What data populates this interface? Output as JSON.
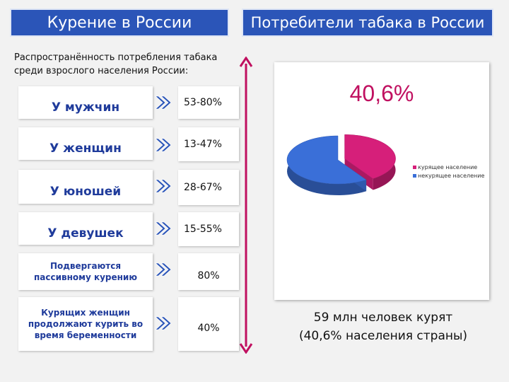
{
  "header": {
    "left_title": "Курение в России",
    "right_title": "Потребители табака в России"
  },
  "intro": "Распространённость потребления табака среди взрослого населения России:",
  "rows": [
    {
      "label": "У мужчин",
      "value": "53-80%"
    },
    {
      "label": "У женщин",
      "value": "13-47%"
    },
    {
      "label": "У юношей",
      "value": "28-67%"
    },
    {
      "label": "У девушек",
      "value": "15-55%"
    },
    {
      "label": "Подвергаются пассивному курению",
      "value": "80%"
    },
    {
      "label": "Курящих женщин продолжают курить во время беременности",
      "value": "40%"
    }
  ],
  "colors": {
    "title_bg": "#2b55b8",
    "label_text": "#1f3b9b",
    "arrow": "#2b55b8",
    "accent_line": "#c01060",
    "smoking": "#d61f7a",
    "non_smoking": "#3a6fd8"
  },
  "icons": {
    "arrow": "double-chevron-right-icon",
    "divider": "double-arrow-vertical-icon"
  },
  "chart_data": {
    "type": "pie",
    "big_label": "40,6%",
    "categories": [
      "курящее население",
      "некурящее население"
    ],
    "values": [
      40.6,
      59.4
    ],
    "colors": [
      "#d61f7a",
      "#3a6fd8"
    ],
    "style": "3d-exploded",
    "legend": "right"
  },
  "summary": {
    "line1": "59 млн человек курят",
    "line2": "(40,6% населения страны)"
  }
}
